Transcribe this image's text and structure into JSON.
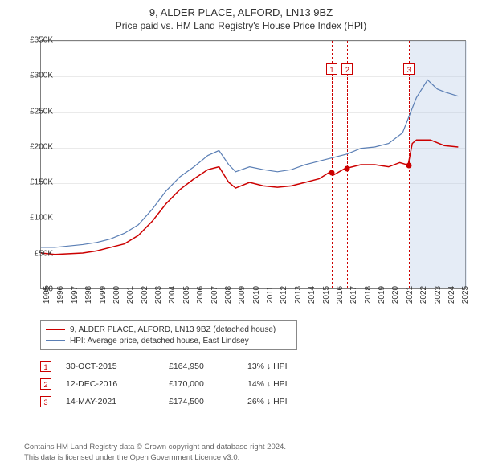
{
  "title": "9, ALDER PLACE, ALFORD, LN13 9BZ",
  "subtitle": "Price paid vs. HM Land Registry's House Price Index (HPI)",
  "chart": {
    "type": "line",
    "xlim": [
      1995,
      2025.5
    ],
    "ylim": [
      0,
      350000
    ],
    "ytick_step": 50000,
    "yticks": [
      "£0",
      "£50K",
      "£100K",
      "£150K",
      "£200K",
      "£250K",
      "£300K",
      "£350K"
    ],
    "xticks": [
      1995,
      1996,
      1997,
      1998,
      1999,
      2000,
      2001,
      2002,
      2003,
      2004,
      2005,
      2006,
      2007,
      2008,
      2009,
      2010,
      2011,
      2012,
      2013,
      2014,
      2015,
      2016,
      2017,
      2018,
      2019,
      2020,
      2021,
      2022,
      2023,
      2024,
      2025
    ],
    "background_color": "#ffffff",
    "grid_color": "rgba(150,150,150,0.2)",
    "shade": {
      "start": 2021.4,
      "end": 2025.5,
      "color": "rgba(180,200,230,0.35)"
    },
    "series": [
      {
        "name": "9, ALDER PLACE, ALFORD, LN13 9BZ (detached house)",
        "color": "#cc0000",
        "width": 1.5,
        "points": [
          [
            1995,
            50000
          ],
          [
            1996,
            48000
          ],
          [
            1997,
            49000
          ],
          [
            1998,
            50000
          ],
          [
            1999,
            53000
          ],
          [
            2000,
            58000
          ],
          [
            2001,
            63000
          ],
          [
            2002,
            75000
          ],
          [
            2003,
            95000
          ],
          [
            2004,
            120000
          ],
          [
            2005,
            140000
          ],
          [
            2006,
            155000
          ],
          [
            2007,
            168000
          ],
          [
            2007.8,
            172000
          ],
          [
            2008.5,
            150000
          ],
          [
            2009,
            142000
          ],
          [
            2010,
            150000
          ],
          [
            2011,
            145000
          ],
          [
            2012,
            143000
          ],
          [
            2013,
            145000
          ],
          [
            2014,
            150000
          ],
          [
            2015,
            155000
          ],
          [
            2015.8,
            164950
          ],
          [
            2016,
            160000
          ],
          [
            2016.9,
            170000
          ],
          [
            2017,
            170000
          ],
          [
            2018,
            175000
          ],
          [
            2019,
            175000
          ],
          [
            2020,
            172000
          ],
          [
            2020.8,
            178000
          ],
          [
            2021.4,
            174500
          ],
          [
            2021.7,
            205000
          ],
          [
            2022,
            210000
          ],
          [
            2023,
            210000
          ],
          [
            2024,
            202000
          ],
          [
            2025,
            200000
          ]
        ]
      },
      {
        "name": "HPI: Average price, detached house, East Lindsey",
        "color": "#5b7fb5",
        "width": 1.2,
        "points": [
          [
            1995,
            58000
          ],
          [
            1996,
            58000
          ],
          [
            1997,
            60000
          ],
          [
            1998,
            62000
          ],
          [
            1999,
            65000
          ],
          [
            2000,
            70000
          ],
          [
            2001,
            78000
          ],
          [
            2002,
            90000
          ],
          [
            2003,
            112000
          ],
          [
            2004,
            138000
          ],
          [
            2005,
            158000
          ],
          [
            2006,
            172000
          ],
          [
            2007,
            188000
          ],
          [
            2007.8,
            195000
          ],
          [
            2008.5,
            175000
          ],
          [
            2009,
            165000
          ],
          [
            2010,
            172000
          ],
          [
            2011,
            168000
          ],
          [
            2012,
            165000
          ],
          [
            2013,
            168000
          ],
          [
            2014,
            175000
          ],
          [
            2015,
            180000
          ],
          [
            2016,
            185000
          ],
          [
            2017,
            190000
          ],
          [
            2018,
            198000
          ],
          [
            2019,
            200000
          ],
          [
            2020,
            205000
          ],
          [
            2021,
            220000
          ],
          [
            2022,
            270000
          ],
          [
            2022.8,
            295000
          ],
          [
            2023.5,
            282000
          ],
          [
            2024,
            278000
          ],
          [
            2025,
            272000
          ]
        ]
      }
    ],
    "markers": [
      {
        "num": "1",
        "x": 2015.83,
        "sale_y": 164950,
        "box_y": 310000
      },
      {
        "num": "2",
        "x": 2016.95,
        "sale_y": 170000,
        "box_y": 310000
      },
      {
        "num": "3",
        "x": 2021.37,
        "sale_y": 174500,
        "box_y": 310000
      }
    ]
  },
  "legend": {
    "rows": [
      {
        "color": "#cc0000",
        "label": "9, ALDER PLACE, ALFORD, LN13 9BZ (detached house)"
      },
      {
        "color": "#5b7fb5",
        "label": "HPI: Average price, detached house, East Lindsey"
      }
    ]
  },
  "sales": [
    {
      "num": "1",
      "date": "30-OCT-2015",
      "price": "£164,950",
      "delta": "13% ↓ HPI"
    },
    {
      "num": "2",
      "date": "12-DEC-2016",
      "price": "£170,000",
      "delta": "14% ↓ HPI"
    },
    {
      "num": "3",
      "date": "14-MAY-2021",
      "price": "£174,500",
      "delta": "26% ↓ HPI"
    }
  ],
  "footer": {
    "line1": "Contains HM Land Registry data © Crown copyright and database right 2024.",
    "line2": "This data is licensed under the Open Government Licence v3.0."
  }
}
